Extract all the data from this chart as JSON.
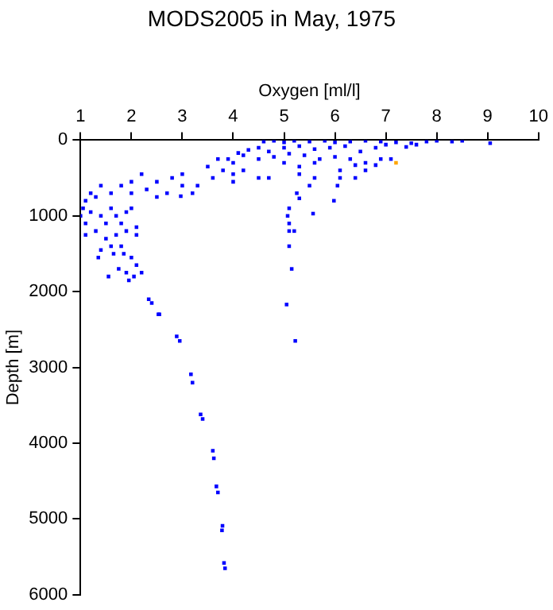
{
  "chart_data": {
    "type": "scatter",
    "title": "MODS2005 in May, 1975",
    "xlabel": "Oxygen [ml/l]",
    "ylabel": "Depth [m]",
    "xlim": [
      1,
      10
    ],
    "xticks": [
      1,
      2,
      3,
      4,
      5,
      6,
      7,
      8,
      9,
      10
    ],
    "ylim": [
      6000,
      0
    ],
    "yticks": [
      0,
      1000,
      2000,
      3000,
      4000,
      5000,
      6000
    ],
    "grid": false,
    "legend": false,
    "marker": "square",
    "series": [
      {
        "color": "#0000ff",
        "x": [
          4.6,
          4.8,
          5.0,
          5.2,
          5.5,
          5.8,
          6.0,
          6.3,
          6.6,
          6.9,
          7.2,
          7.5,
          7.8,
          8.0,
          8.3,
          8.5,
          9.05,
          4.5,
          4.7,
          5.0,
          5.3,
          5.6,
          5.9,
          6.2,
          6.5,
          6.8,
          7.0,
          7.4,
          7.6,
          4.2,
          4.5,
          4.8,
          5.1,
          5.4,
          5.7,
          6.0,
          6.3,
          6.6,
          6.9,
          7.1,
          5.0,
          5.3,
          5.6,
          6.1,
          6.4,
          6.6,
          6.8,
          5.3,
          5.6,
          5.5,
          5.57,
          5.98,
          6.05,
          6.1,
          6.4,
          5.3,
          4.0,
          4.0,
          4.2,
          4.5,
          4.7,
          4.0,
          3.8,
          3.6,
          3.5,
          3.3,
          3.0,
          3.2,
          3.0,
          2.8,
          2.7,
          2.5,
          2.5,
          2.3,
          2.2,
          2.0,
          2.0,
          1.8,
          1.6,
          1.4,
          1.3,
          1.2,
          1.1,
          1.05,
          2.97,
          4.1,
          4.3,
          3.9,
          3.7,
          1.0,
          1.1,
          1.2,
          1.3,
          1.1,
          1.4,
          1.5,
          1.6,
          1.7,
          1.8,
          1.9,
          2.0,
          1.5,
          1.7,
          1.9,
          2.1,
          1.6,
          1.8,
          1.4,
          2.1,
          1.35,
          1.55,
          1.75,
          1.9,
          2.0,
          2.1,
          2.2,
          1.85,
          1.65,
          1.95,
          2.05,
          5.07,
          5.1,
          5.1,
          5.2,
          5.1,
          5.15,
          5.05,
          5.22,
          5.1,
          5.25,
          2.34,
          2.4,
          2.53,
          2.55,
          2.89,
          2.95,
          3.17,
          3.2,
          3.36,
          3.4,
          3.6,
          3.62,
          3.67,
          3.7,
          3.79,
          3.78,
          3.82,
          3.84
        ],
        "values": [
          20,
          10,
          30,
          10,
          20,
          10,
          30,
          20,
          10,
          20,
          30,
          40,
          20,
          10,
          20,
          10,
          40,
          100,
          150,
          100,
          80,
          120,
          100,
          80,
          150,
          100,
          60,
          90,
          60,
          200,
          250,
          220,
          180,
          200,
          250,
          220,
          250,
          300,
          250,
          250,
          300,
          350,
          300,
          400,
          330,
          400,
          330,
          450,
          500,
          600,
          970,
          800,
          600,
          500,
          500,
          770,
          300,
          450,
          400,
          500,
          500,
          550,
          400,
          500,
          350,
          600,
          450,
          700,
          600,
          500,
          700,
          550,
          750,
          650,
          450,
          700,
          550,
          600,
          700,
          600,
          750,
          700,
          800,
          900,
          740,
          170,
          130,
          250,
          250,
          1000,
          1100,
          950,
          1200,
          1250,
          1000,
          1100,
          900,
          1000,
          1100,
          950,
          900,
          1300,
          1250,
          1200,
          1150,
          1400,
          1400,
          1450,
          1250,
          1550,
          1800,
          1700,
          1750,
          1550,
          1650,
          1750,
          1500,
          1500,
          1850,
          1800,
          1000,
          1100,
          1200,
          1200,
          1400,
          1700,
          2170,
          2650,
          900,
          700,
          2100,
          2150,
          2300,
          2300,
          2590,
          2650,
          3090,
          3200,
          3620,
          3680,
          4100,
          4200,
          4570,
          4650,
          5090,
          5150,
          5580,
          5650
        ]
      },
      {
        "color": "#ffa500",
        "x": [
          7.2
        ],
        "values": [
          300
        ]
      }
    ]
  }
}
